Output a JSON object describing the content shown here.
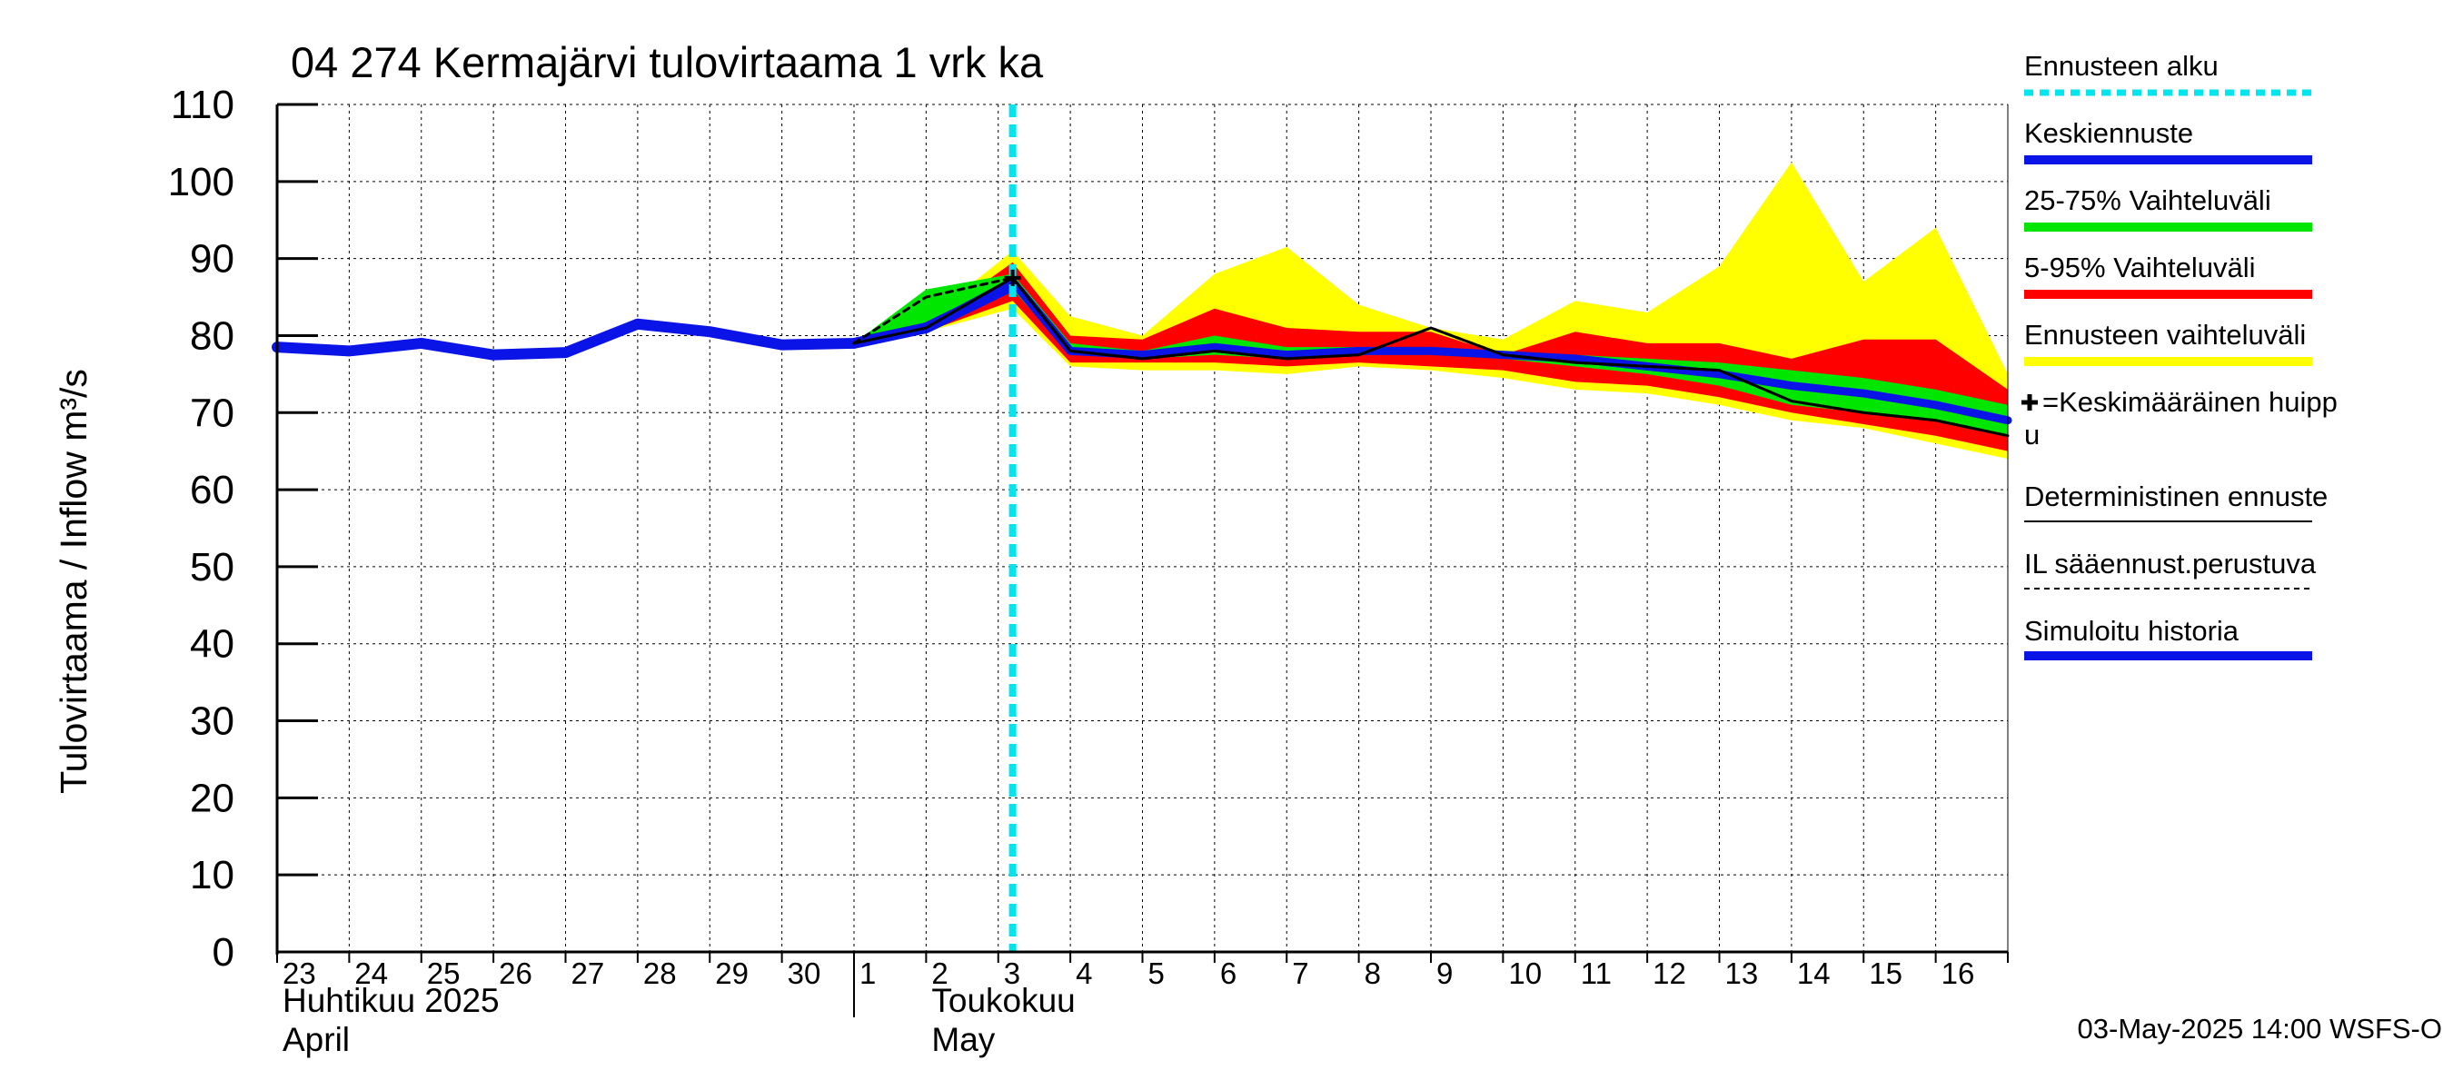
{
  "chart_data": {
    "type": "area",
    "title": "04 274 Kermajärvi tulovirtaama 1 vrk ka",
    "ylabel": "Tulovirtaama / Inflow    m³/s",
    "ylim": [
      0,
      110
    ],
    "yticks": [
      "0",
      "10",
      "20",
      "30",
      "40",
      "50",
      "60",
      "70",
      "80",
      "90",
      "100",
      "110"
    ],
    "xlim": [
      0,
      24
    ],
    "day_labels": [
      "23",
      "24",
      "25",
      "26",
      "27",
      "28",
      "29",
      "30",
      "1",
      "2",
      "3",
      "4",
      "5",
      "6",
      "7",
      "8",
      "9",
      "10",
      "11",
      "12",
      "13",
      "14",
      "15",
      "16"
    ],
    "month_labels": [
      {
        "line1": "Huhtikuu  2025",
        "line2": "April",
        "day_index": 0
      },
      {
        "line1": "Toukokuu",
        "line2": "May",
        "day_index": 9
      }
    ],
    "forecast_start": 10.2,
    "series": {
      "history": {
        "x": [
          0,
          1,
          2,
          3,
          4,
          5,
          6,
          7,
          8,
          9,
          10.2
        ],
        "y": [
          78.5,
          78,
          79,
          77.5,
          77.8,
          81.5,
          80.5,
          78.8,
          79,
          81,
          86.5
        ]
      },
      "yellow": {
        "x": [
          8,
          9,
          10.2,
          11,
          12,
          13,
          14,
          15,
          16,
          17,
          18,
          19,
          20,
          21,
          22,
          23,
          24
        ],
        "upper": [
          79,
          82,
          91,
          82.5,
          80,
          88,
          91.5,
          84,
          81,
          79.5,
          84.5,
          83,
          89,
          102.5,
          87,
          94,
          75
        ],
        "lower": [
          79,
          80.5,
          83.5,
          76,
          75.5,
          75.5,
          75,
          76,
          75.5,
          74.5,
          73,
          72.5,
          71,
          69,
          68,
          66,
          64
        ]
      },
      "red": {
        "x": [
          8,
          9,
          10.2,
          11,
          12,
          13,
          14,
          15,
          16,
          17,
          18,
          19,
          20,
          21,
          22,
          23,
          24
        ],
        "upper": [
          79,
          81.5,
          89.5,
          80,
          79.5,
          83.5,
          81,
          80.5,
          80.5,
          77.5,
          80.5,
          79,
          79,
          77,
          79.5,
          79.5,
          73
        ],
        "lower": [
          79,
          80.5,
          84.5,
          76.5,
          76.5,
          76.5,
          76,
          76.5,
          76,
          75.5,
          74,
          73.5,
          72,
          70,
          68.5,
          67,
          65
        ]
      },
      "green": {
        "x": [
          8,
          9,
          10.2,
          11,
          12,
          13,
          14,
          15,
          16,
          17,
          18,
          19,
          20,
          21,
          22,
          23,
          24
        ],
        "upper": [
          79,
          86,
          88,
          79,
          78,
          80,
          78.5,
          78.5,
          78.5,
          78,
          77.5,
          77,
          76.5,
          75.5,
          74.5,
          73,
          71
        ],
        "lower": [
          79,
          81,
          86,
          77.5,
          77,
          77.5,
          77,
          77.5,
          77.5,
          77,
          76,
          75,
          73.5,
          71,
          70,
          69,
          67
        ]
      },
      "median": {
        "x": [
          8,
          9,
          10.2,
          11,
          12,
          13,
          14,
          15,
          16,
          17,
          18,
          19,
          20,
          21,
          22,
          23,
          24
        ],
        "y": [
          79,
          81,
          87,
          78,
          77.5,
          78.5,
          77.5,
          78,
          78,
          77.5,
          77,
          76,
          75,
          73.5,
          72.5,
          71,
          69
        ]
      },
      "deterministic": {
        "x": [
          8,
          9,
          10.2,
          11,
          12,
          13,
          14,
          15,
          16,
          17,
          18,
          19,
          20,
          21,
          22,
          23,
          24
        ],
        "y": [
          79,
          81,
          87.5,
          78,
          77,
          78,
          77,
          77.5,
          81,
          77.5,
          76.5,
          76,
          75.5,
          71.5,
          70,
          69,
          67
        ]
      },
      "il_forecast": {
        "x": [
          8,
          9,
          10.2,
          11,
          12,
          13,
          14,
          15,
          16,
          17,
          18,
          19,
          20,
          21,
          22,
          23,
          24
        ],
        "y": [
          79,
          85,
          87.5,
          78,
          77,
          78,
          77,
          77.5,
          81,
          77.5,
          76.5,
          76,
          75.5,
          71.5,
          70,
          69,
          67
        ]
      },
      "peak": {
        "x": 10.2,
        "y": 87.5
      }
    },
    "legend": [
      {
        "label": "Ennusteen alku",
        "style": "dotted",
        "color": "#00e5ee"
      },
      {
        "label": "Keskiennuste",
        "style": "thick",
        "color": "#0a14e6"
      },
      {
        "label": "25-75% Vaihteluväli",
        "style": "thick",
        "color": "#00e600"
      },
      {
        "label": "5-95% Vaihteluväli",
        "style": "thick",
        "color": "#ff0000"
      },
      {
        "label": "Ennusteen vaihteluväli",
        "style": "thick",
        "color": "#ffff00"
      },
      {
        "label": "=Keskimääräinen huipp",
        "label2": "u",
        "style": "cross",
        "color": "#000000"
      },
      {
        "label": "Deterministinen ennuste",
        "style": "thin",
        "color": "#000000"
      },
      {
        "label": "IL sääennust.perustuva",
        "style": "dashed",
        "color": "#000000"
      },
      {
        "label": "Simuloitu historia",
        "style": "thick",
        "color": "#0a14e6"
      }
    ]
  },
  "footer": {
    "timestamp": "03-May-2025 14:00 WSFS-O"
  }
}
